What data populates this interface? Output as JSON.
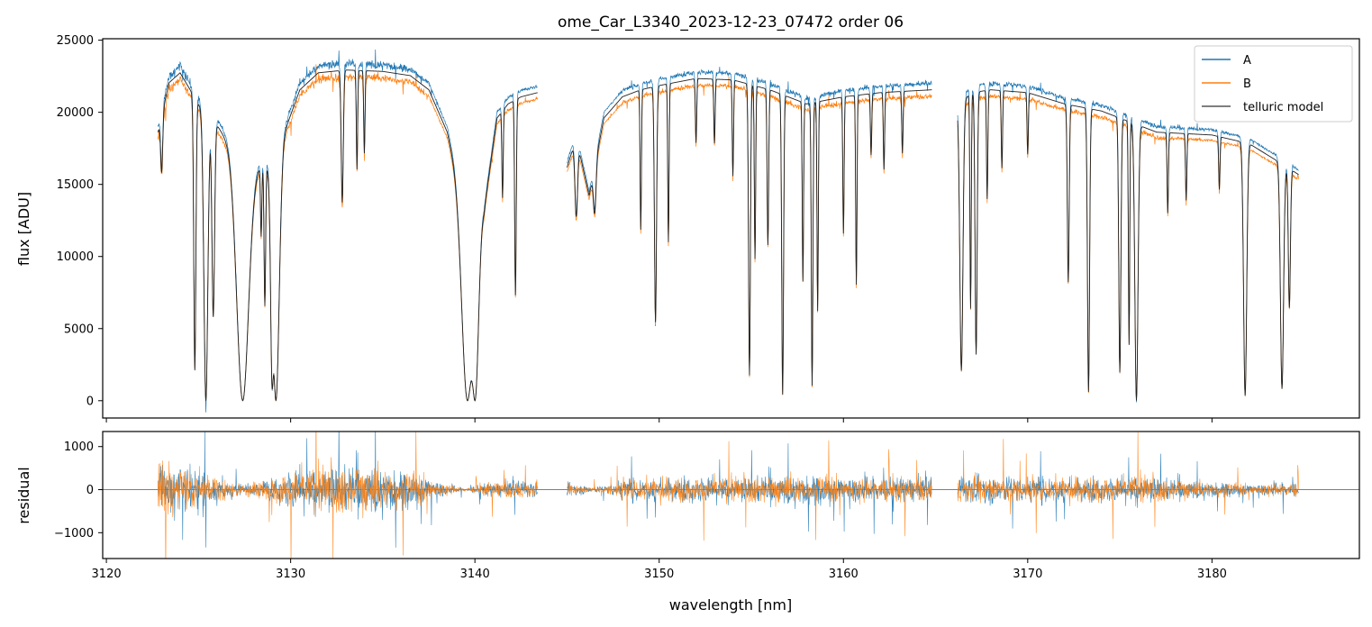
{
  "chart_data": [
    {
      "type": "line",
      "title": "ome_Car_L3340_2023-12-23_07472  order 06",
      "xlabel": "",
      "ylabel": "flux [ADU]",
      "xlim": [
        3119.8,
        3188.0
      ],
      "ylim": [
        -1200,
        25100
      ],
      "yticks": [
        0,
        5000,
        10000,
        15000,
        20000,
        25000
      ],
      "ytick_labels": [
        "0",
        "5000",
        "10000",
        "15000",
        "20000",
        "25000"
      ],
      "legend_position": "top-right",
      "grid": false,
      "series": [
        {
          "name": "A",
          "color": "#1f77b4"
        },
        {
          "name": "B",
          "color": "#ff7f0e"
        },
        {
          "name": "telluric model",
          "color": "#555555"
        }
      ],
      "data_ranges": [
        [
          3122.8,
          3143.4
        ],
        [
          3145.0,
          3164.8
        ],
        [
          3166.2,
          3184.7
        ]
      ],
      "continuum_points": {
        "x": [
          3122.8,
          3123.4,
          3124.0,
          3125.0,
          3126.0,
          3127.0,
          3128.0,
          3129.0,
          3129.8,
          3130.5,
          3131.5,
          3133.0,
          3135.0,
          3136.5,
          3137.5,
          3138.5,
          3139.5,
          3140.5,
          3141.2,
          3141.8,
          3142.5,
          3143.4,
          3145.0,
          3145.5,
          3146.2,
          3147.0,
          3148.0,
          3149.0,
          3150.0,
          3152.0,
          3154.0,
          3156.0,
          3158.0,
          3160.0,
          3162.0,
          3164.8,
          3166.2,
          3167.0,
          3168.0,
          3170.0,
          3172.0,
          3174.0,
          3176.0,
          3177.0,
          3180.0,
          3182.0,
          3183.5,
          3184.7
        ],
        "y": [
          19000,
          22500,
          23200,
          21000,
          19500,
          17500,
          16500,
          17000,
          19500,
          22000,
          23200,
          23400,
          23300,
          23000,
          22000,
          19000,
          13000,
          13500,
          20000,
          21000,
          21500,
          21800,
          16500,
          18600,
          14500,
          20000,
          21500,
          22000,
          22300,
          22800,
          22700,
          22000,
          21000,
          21500,
          21800,
          22000,
          21000,
          21800,
          22000,
          21800,
          21000,
          20500,
          19500,
          19000,
          18800,
          18200,
          17000,
          16000
        ]
      },
      "absorption_lines": {
        "center": [
          3123.0,
          3124.8,
          3125.4,
          3125.8,
          3127.4,
          3128.4,
          3128.6,
          3129.0,
          3129.2,
          3132.8,
          3133.6,
          3134.0,
          3139.6,
          3140.0,
          3141.5,
          3142.2,
          3145.5,
          3146.5,
          3149.0,
          3149.8,
          3150.5,
          3152.0,
          3153.0,
          3154.0,
          3154.9,
          3155.2,
          3155.9,
          3156.7,
          3157.8,
          3158.3,
          3158.6,
          3160.0,
          3160.7,
          3161.5,
          3162.2,
          3163.2,
          3166.4,
          3166.9,
          3167.2,
          3167.8,
          3168.6,
          3170.0,
          3172.2,
          3173.3,
          3175.0,
          3175.5,
          3175.9,
          3177.6,
          3178.6,
          3180.4,
          3181.8,
          3183.8,
          3184.2
        ],
        "depth": [
          0.2,
          0.9,
          1.0,
          0.7,
          1.0,
          0.3,
          0.6,
          0.9,
          1.0,
          0.4,
          0.3,
          0.25,
          1.0,
          1.0,
          0.3,
          0.65,
          0.3,
          0.2,
          0.45,
          0.75,
          0.5,
          0.2,
          0.2,
          0.3,
          0.92,
          0.55,
          0.5,
          0.98,
          0.6,
          0.95,
          0.7,
          0.45,
          0.62,
          0.2,
          0.25,
          0.2,
          0.9,
          0.7,
          0.85,
          0.35,
          0.25,
          0.2,
          0.6,
          0.97,
          0.9,
          0.8,
          1.0,
          0.3,
          0.25,
          0.2,
          0.98,
          0.95,
          0.6
        ],
        "width": [
          0.08,
          0.08,
          0.15,
          0.1,
          0.45,
          0.05,
          0.06,
          0.1,
          0.25,
          0.08,
          0.05,
          0.05,
          0.4,
          0.25,
          0.05,
          0.06,
          0.1,
          0.1,
          0.05,
          0.08,
          0.05,
          0.05,
          0.05,
          0.05,
          0.07,
          0.05,
          0.06,
          0.07,
          0.05,
          0.06,
          0.05,
          0.05,
          0.05,
          0.05,
          0.05,
          0.05,
          0.12,
          0.05,
          0.08,
          0.05,
          0.05,
          0.05,
          0.07,
          0.08,
          0.08,
          0.05,
          0.12,
          0.05,
          0.05,
          0.05,
          0.12,
          0.12,
          0.08
        ]
      },
      "b_scale": 0.96
    },
    {
      "type": "line",
      "title": "",
      "xlabel": "wavelength [nm]",
      "ylabel": "residual",
      "xlim": [
        3119.8,
        3188.0
      ],
      "ylim": [
        -1600,
        1350
      ],
      "xticks": [
        3120,
        3130,
        3140,
        3150,
        3160,
        3170,
        3180
      ],
      "xtick_labels": [
        "3120",
        "3130",
        "3140",
        "3150",
        "3160",
        "3170",
        "3180"
      ],
      "yticks": [
        -1000,
        0,
        1000
      ],
      "ytick_labels": [
        "−1000",
        "0",
        "1000"
      ],
      "zero_line": true,
      "series": [
        {
          "name": "A",
          "color": "#1f77b4"
        },
        {
          "name": "B",
          "color": "#ff7f0e"
        }
      ],
      "noise_envelope": {
        "x": [
          3122.8,
          3124.0,
          3126.0,
          3127.5,
          3129.0,
          3130.0,
          3132.0,
          3135.0,
          3137.0,
          3138.5,
          3139.5,
          3140.5,
          3142.0,
          3143.4,
          3145.0,
          3146.5,
          3147.2,
          3148.0,
          3150.0,
          3155.0,
          3158.0,
          3160.0,
          3164.8,
          3166.2,
          3170.0,
          3175.0,
          3176.0,
          3178.0,
          3180.0,
          3182.0,
          3184.7
        ],
        "amp": [
          1300,
          1100,
          600,
          250,
          500,
          900,
          1100,
          1000,
          700,
          250,
          60,
          300,
          400,
          350,
          300,
          120,
          200,
          500,
          550,
          600,
          650,
          600,
          550,
          600,
          600,
          550,
          700,
          450,
          350,
          250,
          350
        ]
      }
    }
  ]
}
